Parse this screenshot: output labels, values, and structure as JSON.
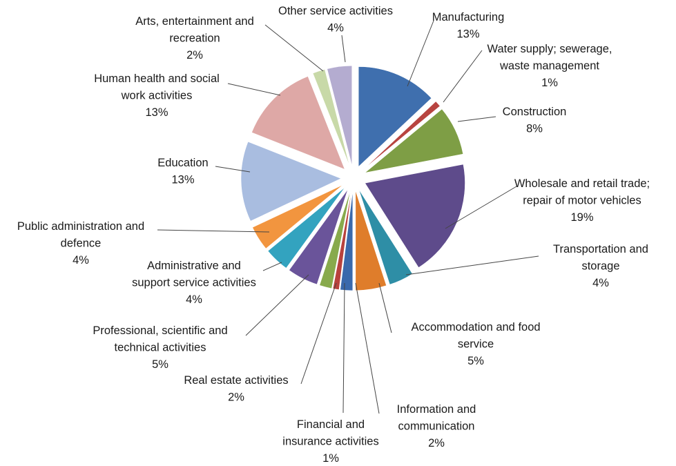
{
  "chart_data": {
    "type": "pie",
    "exploded": true,
    "slices": [
      {
        "name": "Manufacturing",
        "value": 13,
        "label_lines": [
          "Manufacturing"
        ],
        "pct": "13%",
        "color": "#3f6fae"
      },
      {
        "name": "Water supply; sewerage, waste management",
        "value": 1,
        "label_lines": [
          "Water supply; sewerage,",
          "waste management"
        ],
        "pct": "1%",
        "color": "#b84440"
      },
      {
        "name": "Construction",
        "value": 8,
        "label_lines": [
          "Construction"
        ],
        "pct": "8%",
        "color": "#7e9e45"
      },
      {
        "name": "Wholesale and retail trade; repair of motor vehicles",
        "value": 19,
        "label_lines": [
          "Wholesale and retail trade;",
          "repair of motor vehicles"
        ],
        "pct": "19%",
        "color": "#5e4b8b"
      },
      {
        "name": "Transportation and storage",
        "value": 4,
        "label_lines": [
          "Transportation and",
          "storage"
        ],
        "pct": "4%",
        "color": "#2e8ea6"
      },
      {
        "name": "Accommodation and food service",
        "value": 5,
        "label_lines": [
          "Accommodation and food",
          "service"
        ],
        "pct": "5%",
        "color": "#df7d2b"
      },
      {
        "name": "Information and communication",
        "value": 2,
        "label_lines": [
          "Information and",
          "communication"
        ],
        "pct": "2%",
        "color": "#3a69ac"
      },
      {
        "name": "Financial and insurance activities",
        "value": 1,
        "label_lines": [
          "Financial and",
          "insurance activities"
        ],
        "pct": "1%",
        "color": "#b8423d"
      },
      {
        "name": "Real estate activities",
        "value": 2,
        "label_lines": [
          "Real estate activities"
        ],
        "pct": "2%",
        "color": "#88aa4c"
      },
      {
        "name": "Professional, scientific and technical activities",
        "value": 5,
        "label_lines": [
          "Professional, scientific and",
          "technical activities"
        ],
        "pct": "5%",
        "color": "#6a549a"
      },
      {
        "name": "Administrative and support service activities",
        "value": 4,
        "label_lines": [
          "Administrative and",
          "support service activities"
        ],
        "pct": "4%",
        "color": "#33a3bf"
      },
      {
        "name": "Public administration and defence",
        "value": 4,
        "label_lines": [
          "Public administration and",
          "defence"
        ],
        "pct": "4%",
        "color": "#f2953f"
      },
      {
        "name": "Education",
        "value": 13,
        "label_lines": [
          "Education"
        ],
        "pct": "13%",
        "color": "#a9bde0"
      },
      {
        "name": "Human health and social work activities",
        "value": 13,
        "label_lines": [
          "Human health and social",
          "work activities"
        ],
        "pct": "13%",
        "color": "#dea8a6"
      },
      {
        "name": "Arts, entertainment and recreation",
        "value": 2,
        "label_lines": [
          "Arts, entertainment and",
          "recreation"
        ],
        "pct": "2%",
        "color": "#c8d9a8"
      },
      {
        "name": "Other service activities",
        "value": 4,
        "label_lines": [
          "Other service activities"
        ],
        "pct": "4%",
        "color": "#b4acd0"
      }
    ]
  }
}
